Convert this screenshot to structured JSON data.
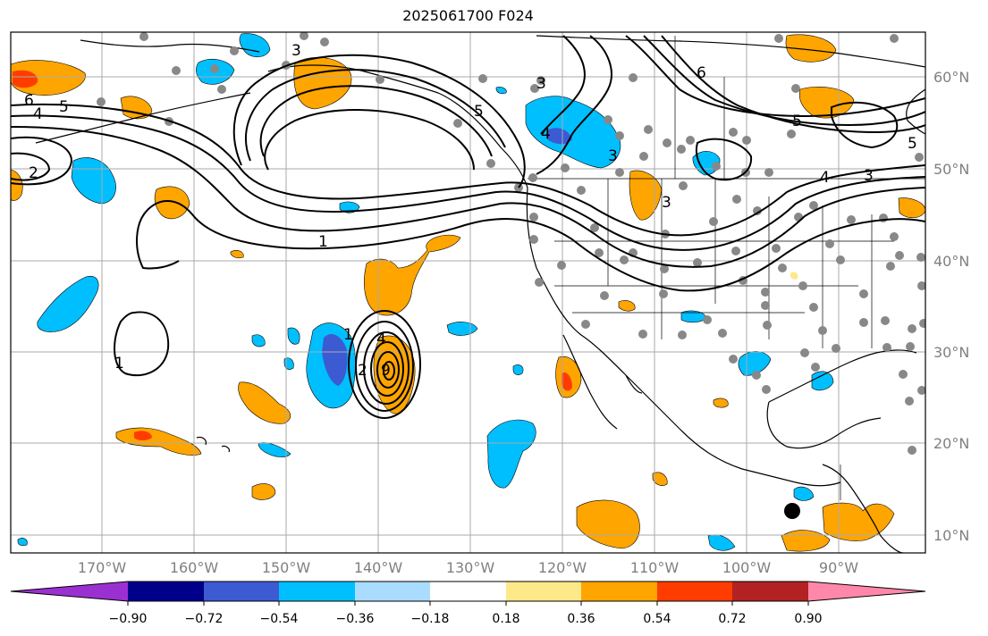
{
  "title": "2025061700 F024",
  "map": {
    "lon_labels": [
      "170°W",
      "160°W",
      "150°W",
      "140°W",
      "130°W",
      "120°W",
      "110°W",
      "100°W",
      "90°W"
    ],
    "lat_labels": [
      "60°N",
      "50°N",
      "40°N",
      "30°N",
      "20°N",
      "10°N"
    ],
    "contour_labels": [
      "6",
      "4",
      "5",
      "2",
      "3",
      "1",
      "1",
      "3",
      "5",
      "3",
      "6",
      "5",
      "4",
      "3",
      "5",
      "4",
      "3",
      "4",
      "1",
      "2",
      "9"
    ],
    "colors": {
      "warm_light": "#fde98a",
      "warm": "#ffa500",
      "warm_strong": "#ff3c00",
      "cold_light": "#aadcff",
      "cold": "#00bfff",
      "cold_strong": "#3c5ad2",
      "station": "#888888"
    }
  },
  "colorbar": {
    "ticks": [
      "−0.90",
      "−0.72",
      "−0.54",
      "−0.36",
      "−0.18",
      "0.18",
      "0.36",
      "0.54",
      "0.72",
      "0.90"
    ],
    "colors": [
      "#9b30d2",
      "#00008b",
      "#3c5ad2",
      "#00bfff",
      "#aadcff",
      "#ffffff",
      "#fde98a",
      "#ffa500",
      "#ff3c00",
      "#b22222",
      "#ff88aa"
    ]
  }
}
